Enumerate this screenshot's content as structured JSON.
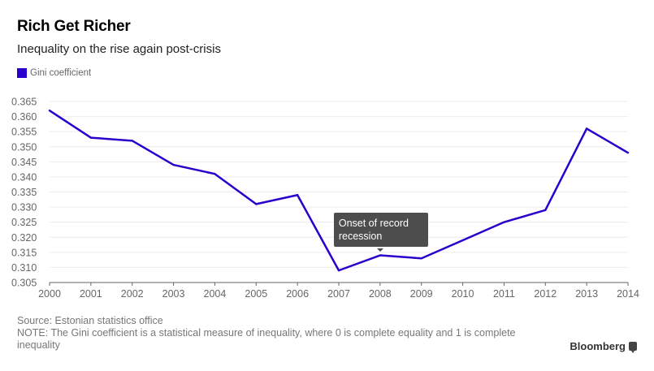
{
  "header": {
    "title": "Rich Get Richer",
    "subtitle": "Inequality on the rise again post-crisis"
  },
  "legend": {
    "label": "Gini coefficient",
    "color": "#2a00cc"
  },
  "chart_data": {
    "type": "line",
    "title": "Rich Get Richer",
    "subtitle": "Inequality on the rise again post-crisis",
    "xlabel": "",
    "ylabel": "",
    "x": [
      "2000",
      "2001",
      "2002",
      "2003",
      "2004",
      "2005",
      "2006",
      "2007",
      "2008",
      "2009",
      "2010",
      "2011",
      "2012",
      "2013",
      "2014"
    ],
    "series": [
      {
        "name": "Gini coefficient",
        "color": "#2a00cc",
        "values": [
          0.362,
          0.353,
          0.352,
          0.344,
          0.341,
          0.331,
          0.334,
          0.309,
          0.314,
          0.313,
          0.319,
          0.325,
          0.329,
          0.356,
          0.348
        ]
      }
    ],
    "ylim": [
      0.305,
      0.365
    ],
    "yticks": [
      "0.305",
      "0.310",
      "0.315",
      "0.320",
      "0.325",
      "0.330",
      "0.335",
      "0.340",
      "0.345",
      "0.350",
      "0.355",
      "0.360",
      "0.365"
    ],
    "grid": true,
    "legend_position": "top-left",
    "annotations": [
      {
        "x": "2008",
        "text": "Onset of record recession"
      }
    ]
  },
  "tooltip": {
    "text": "Onset of record recession"
  },
  "footer": {
    "source": "Source: Estonian statistics office",
    "note": "NOTE: The Gini coefficient is a statistical measure of inequality, where 0 is complete equality and 1 is complete inequality",
    "brand": "Bloomberg"
  }
}
